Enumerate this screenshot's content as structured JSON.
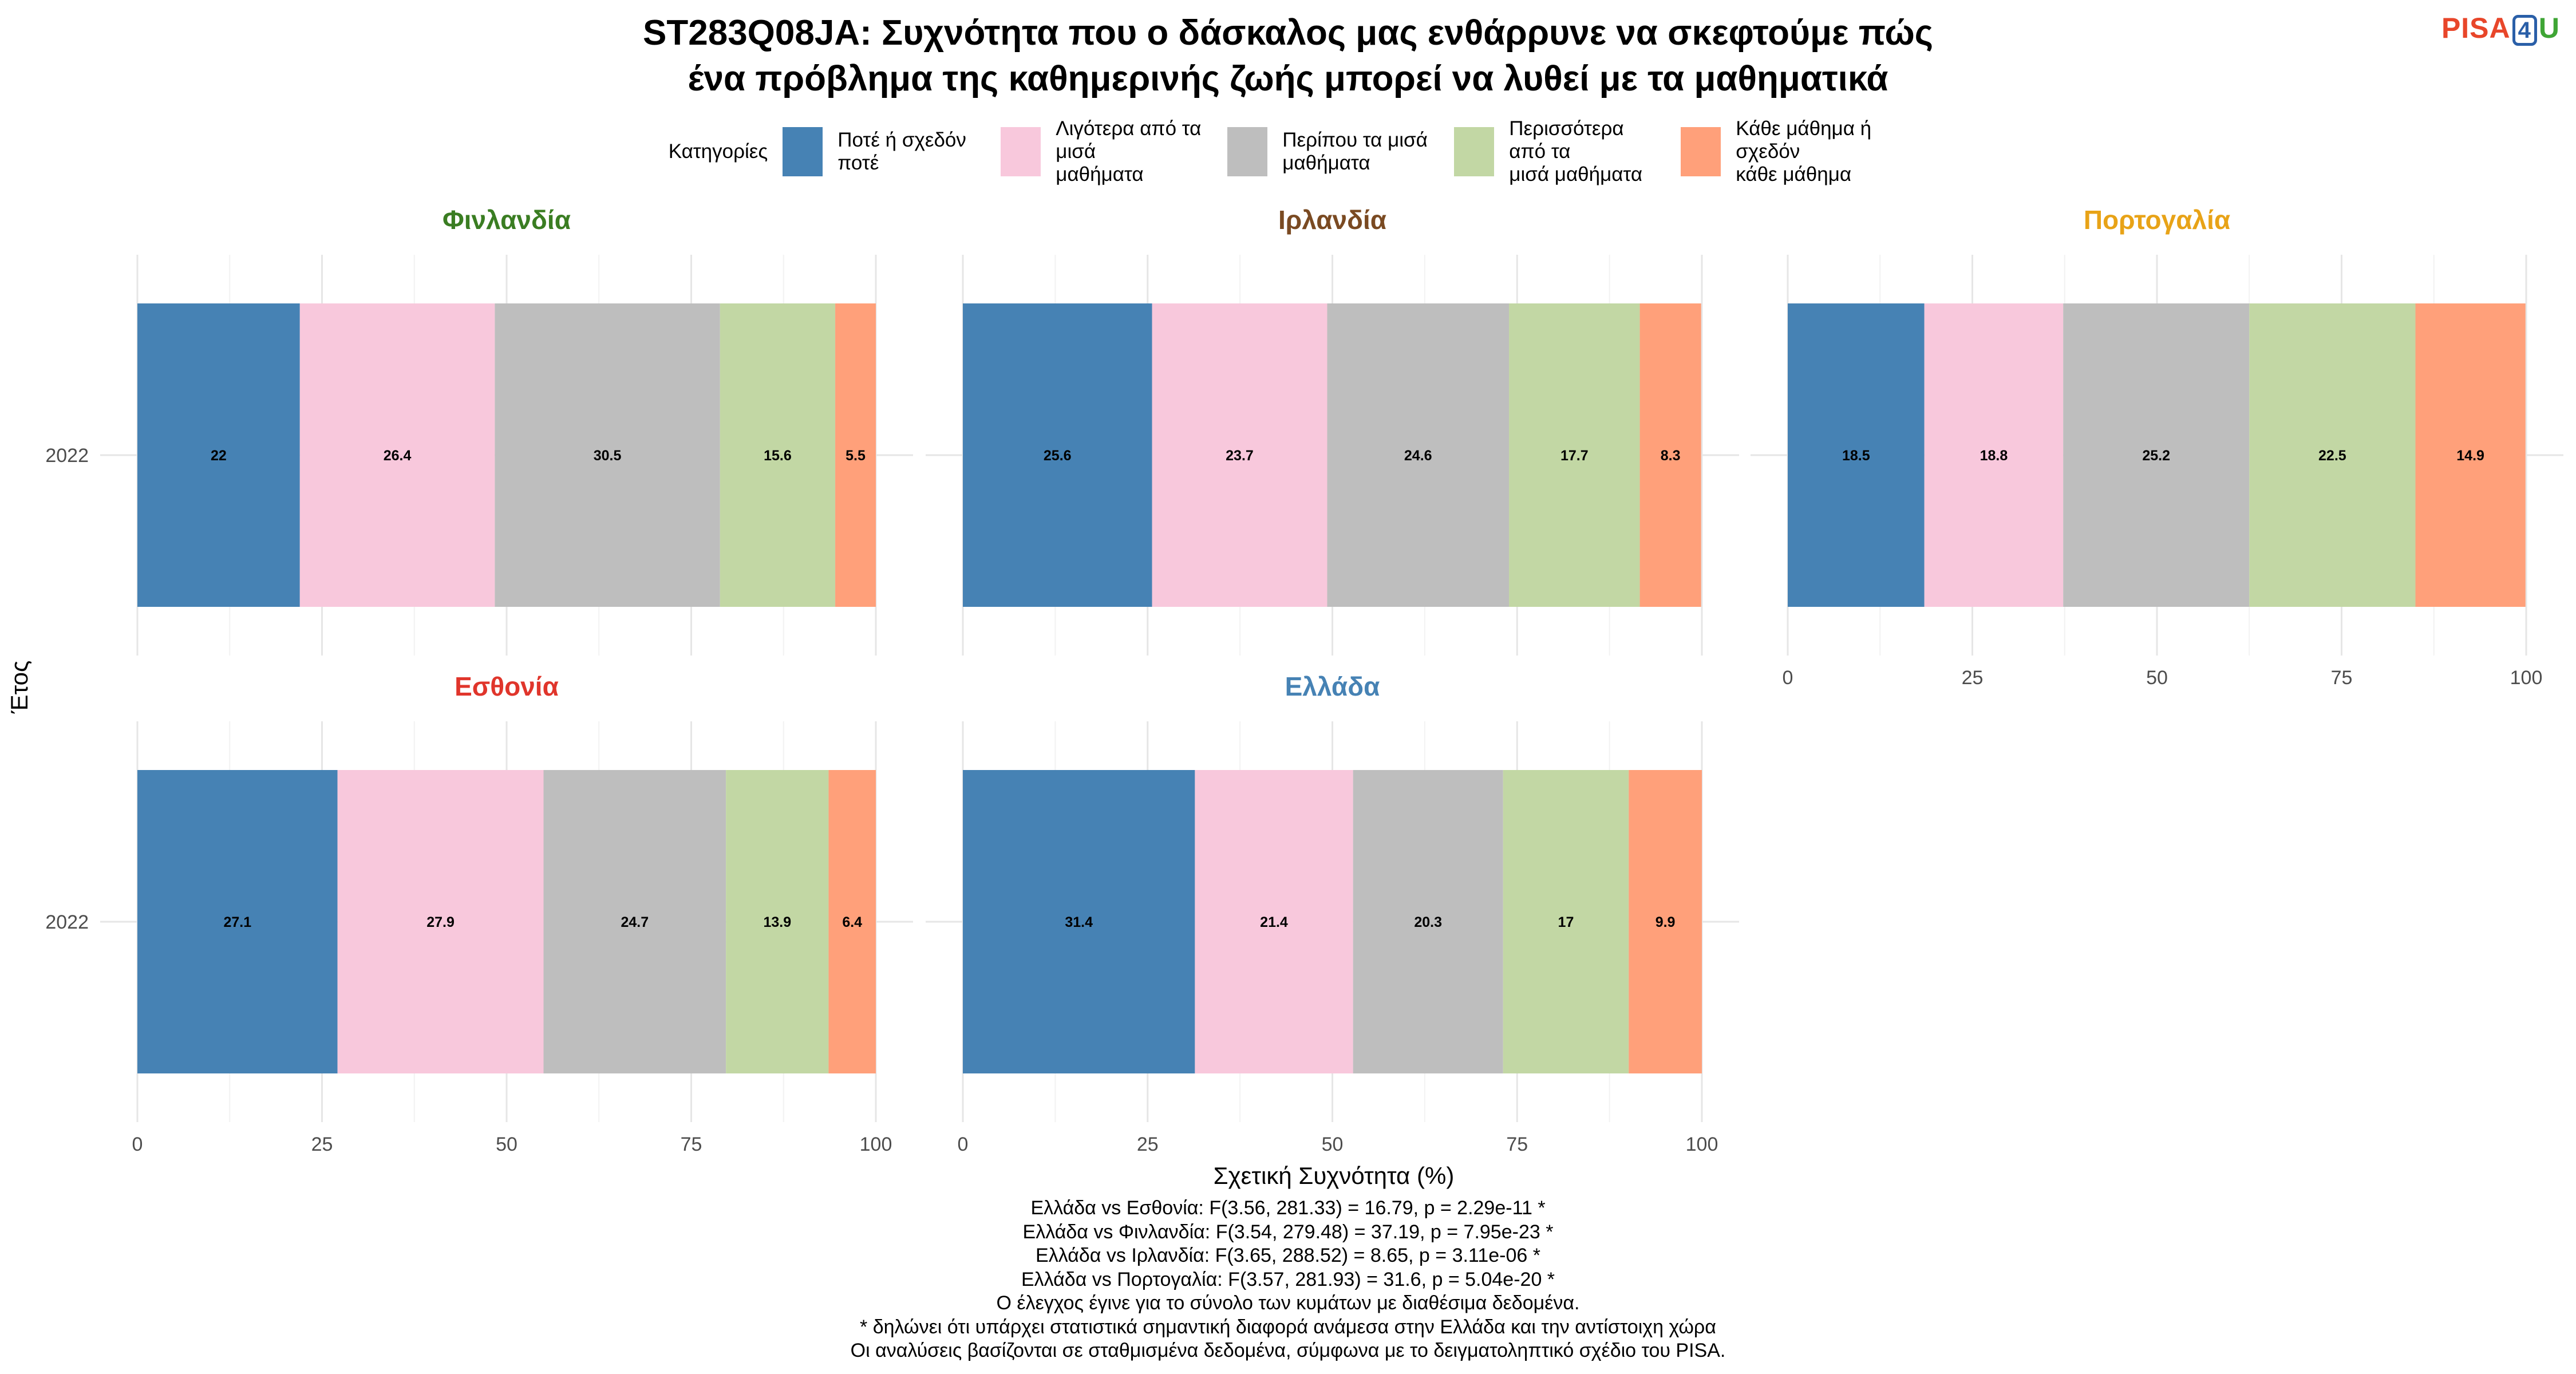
{
  "title_line1": "ST283Q08JA: Συχνότητα που ο δάσκαλος μας ενθάρρυνε να σκεφτούμε πώς",
  "title_line2": "ένα πρόβλημα της καθημερινής ζωής μπορεί να λυθεί με τα μαθηματικά",
  "logo": {
    "pisa": "PISA",
    "four": "4",
    "u": "U"
  },
  "legend": {
    "title": "Κατηγορίες",
    "items": [
      {
        "label": "Ποτέ ή σχεδόν ποτέ",
        "color": "#4682b4"
      },
      {
        "label": "Λιγότερα από τα μισά\nμαθήματα",
        "color": "#f8c8dc"
      },
      {
        "label": "Περίπου τα μισά\nμαθήματα",
        "color": "#bebebe"
      },
      {
        "label": "Περισσότερα από τα\nμισά μαθήματα",
        "color": "#c2d7a4"
      },
      {
        "label": "Κάθε μάθημα ή σχεδόν\nκάθε μάθημα",
        "color": "#ffa07a"
      }
    ]
  },
  "chart_data": {
    "type": "bar",
    "orientation": "horizontal-stacked",
    "xlabel": "Σχετική Συχνότητα (%)",
    "ylabel": "Έτος",
    "xlim": [
      0,
      100
    ],
    "xticks": [
      0,
      25,
      50,
      75,
      100
    ],
    "categories": [
      "2022"
    ],
    "series_names": [
      "Ποτέ ή σχεδόν ποτέ",
      "Λιγότερα από τα μισά μαθήματα",
      "Περίπου τα μισά μαθήματα",
      "Περισσότερα από τα μισά μαθήματα",
      "Κάθε μάθημα ή σχεδόν κάθε μάθημα"
    ],
    "colors": [
      "#4682b4",
      "#f8c8dc",
      "#bebebe",
      "#c2d7a4",
      "#ffa07a"
    ],
    "grid": true,
    "panels": [
      {
        "name": "Φινλανδία",
        "title_color": "#3a7d22",
        "year": "2022",
        "values": [
          22,
          26.4,
          30.5,
          15.6,
          5.5
        ]
      },
      {
        "name": "Ιρλανδία",
        "title_color": "#7a4a22",
        "year": "2022",
        "values": [
          25.6,
          23.7,
          24.6,
          17.7,
          8.3
        ]
      },
      {
        "name": "Πορτογαλία",
        "title_color": "#e8a317",
        "year": "2022",
        "values": [
          18.5,
          18.8,
          25.2,
          22.5,
          14.9
        ]
      },
      {
        "name": "Εσθονία",
        "title_color": "#e0352b",
        "year": "2022",
        "values": [
          27.1,
          27.9,
          24.7,
          13.9,
          6.4
        ]
      },
      {
        "name": "Ελλάδα",
        "title_color": "#4682b4",
        "year": "2022",
        "values": [
          31.4,
          21.4,
          20.3,
          17,
          9.9
        ]
      }
    ]
  },
  "footnotes": [
    "Ελλάδα vs Εσθονία: F(3.56, 281.33) = 16.79, p = 2.29e-11 *",
    "Ελλάδα vs Φινλανδία: F(3.54, 279.48) = 37.19, p = 7.95e-23 *",
    "Ελλάδα vs Ιρλανδία: F(3.65, 288.52) = 8.65, p = 3.11e-06 *",
    "Ελλάδα vs Πορτογαλία: F(3.57, 281.93) = 31.6, p = 5.04e-20 *",
    "Ο έλεγχος έγινε για το σύνολο των κυμάτων με διαθέσιμα δεδομένα.",
    "* δηλώνει ότι υπάρχει στατιστικά σημαντική διαφορά ανάμεσα στην Ελλάδα και την αντίστοιχη χώρα",
    "Οι αναλύσεις βασίζονται σε σταθμισμένα δεδομένα, σύμφωνα με το δειγματοληπτικό σχέδιο του PISA."
  ]
}
